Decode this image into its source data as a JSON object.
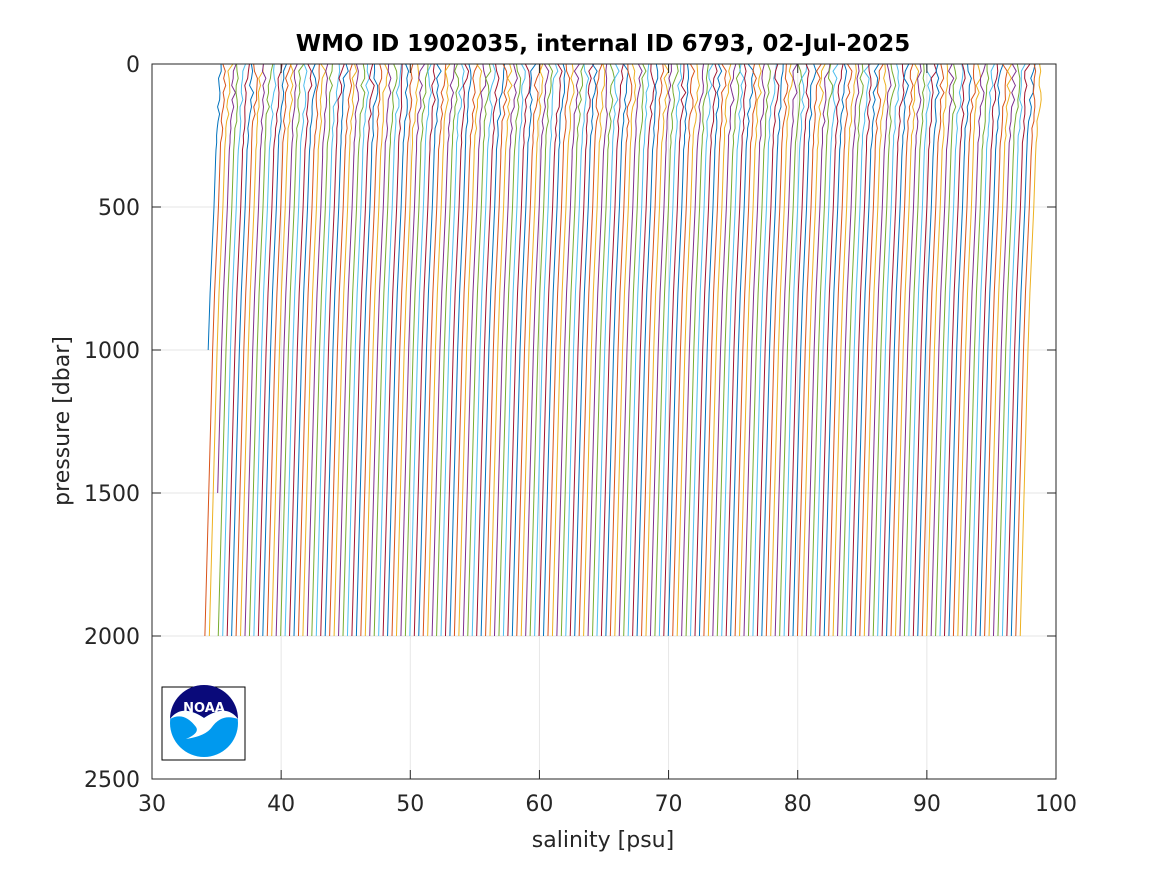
{
  "chart_data": {
    "type": "line",
    "title": "WMO ID 1902035, internal ID 6793, 02-Jul-2025",
    "xlabel": "salinity [psu]",
    "ylabel": "pressure [dbar]",
    "xlim": [
      30,
      100
    ],
    "ylim": [
      0,
      2500
    ],
    "y_reversed": true,
    "grid": true,
    "legend": "none",
    "xticks": [
      30,
      40,
      50,
      60,
      70,
      80,
      90,
      100
    ],
    "yticks": [
      0,
      500,
      1000,
      1500,
      2000,
      2500
    ],
    "series_colors": [
      "#0072bd",
      "#d95319",
      "#edb120",
      "#7e2f8e",
      "#77ac30",
      "#4dbeee",
      "#a2142f"
    ],
    "profile_count": 186,
    "first_profile_base_salinity": 34.8,
    "last_profile_base_salinity": 98.5,
    "profile_spacing": 0.345,
    "typical_max_pressure": 2000,
    "profile_shape": {
      "pressure": [
        0,
        100,
        200,
        300,
        500,
        800,
        1000,
        1500,
        2000
      ],
      "salinity_offset": [
        0.55,
        0.48,
        0.3,
        0.15,
        0.0,
        -0.3,
        -0.45,
        -0.75,
        -1.05
      ]
    },
    "note_shallow_profiles": [
      {
        "profile": 0,
        "max_pressure": 1000
      },
      {
        "profile": 3,
        "max_pressure": 1510
      }
    ]
  },
  "logo": {
    "name": "NOAA",
    "text": "NOAA",
    "colors": [
      "#0a0a7a",
      "#0099ee"
    ]
  }
}
